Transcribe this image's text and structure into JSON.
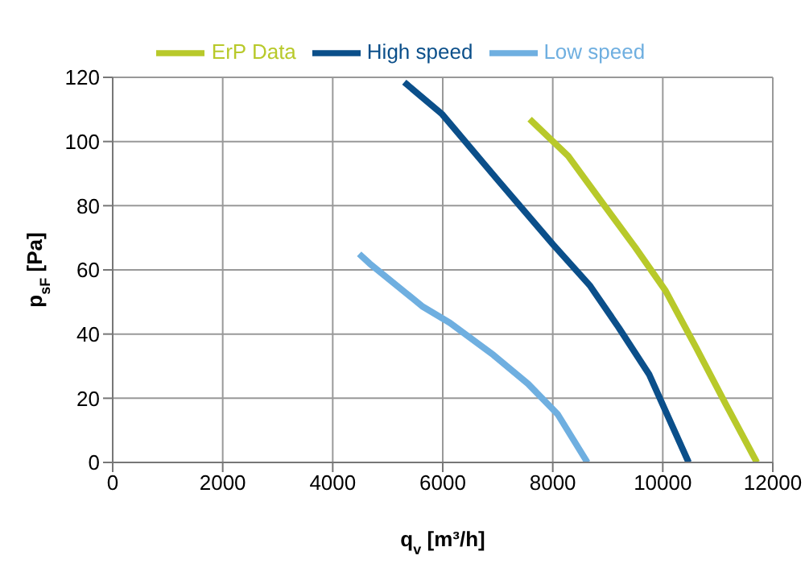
{
  "chart_data": {
    "type": "line",
    "xlabel": "q$_{v}$ [m³/h]",
    "ylabel": "p$_{sF}$ [Pa]",
    "xlim": [
      0,
      12000
    ],
    "xticks": [
      0,
      2000,
      4000,
      6000,
      8000,
      10000,
      12000
    ],
    "ylim": [
      0,
      120
    ],
    "yticks": [
      0,
      20,
      40,
      60,
      80,
      100,
      120
    ],
    "grid": true,
    "legend": "top",
    "marker": "none",
    "line_style": "solid",
    "series": [
      {
        "name": "High speed",
        "color": "#0b4f8a",
        "x": [
          5300,
          5990,
          7000,
          8000,
          8680,
          9200,
          9750,
          10470
        ],
        "values": [
          118.5,
          108.5,
          88,
          68,
          55,
          42,
          27.5,
          0
        ]
      },
      {
        "name": "Low speed",
        "color": "#6fafe0",
        "x": [
          4480,
          4670,
          5640,
          6130,
          6920,
          7550,
          8090,
          8630
        ],
        "values": [
          65,
          62,
          48.5,
          43.5,
          33.5,
          24.5,
          15,
          0
        ]
      },
      {
        "name": "ErP Data",
        "color": "#b8c92a",
        "x": [
          7580,
          8280,
          8920,
          9500,
          10050,
          10600,
          11150,
          11710
        ],
        "values": [
          107,
          95.5,
          80.5,
          67,
          53.5,
          36,
          18,
          0
        ]
      }
    ]
  }
}
